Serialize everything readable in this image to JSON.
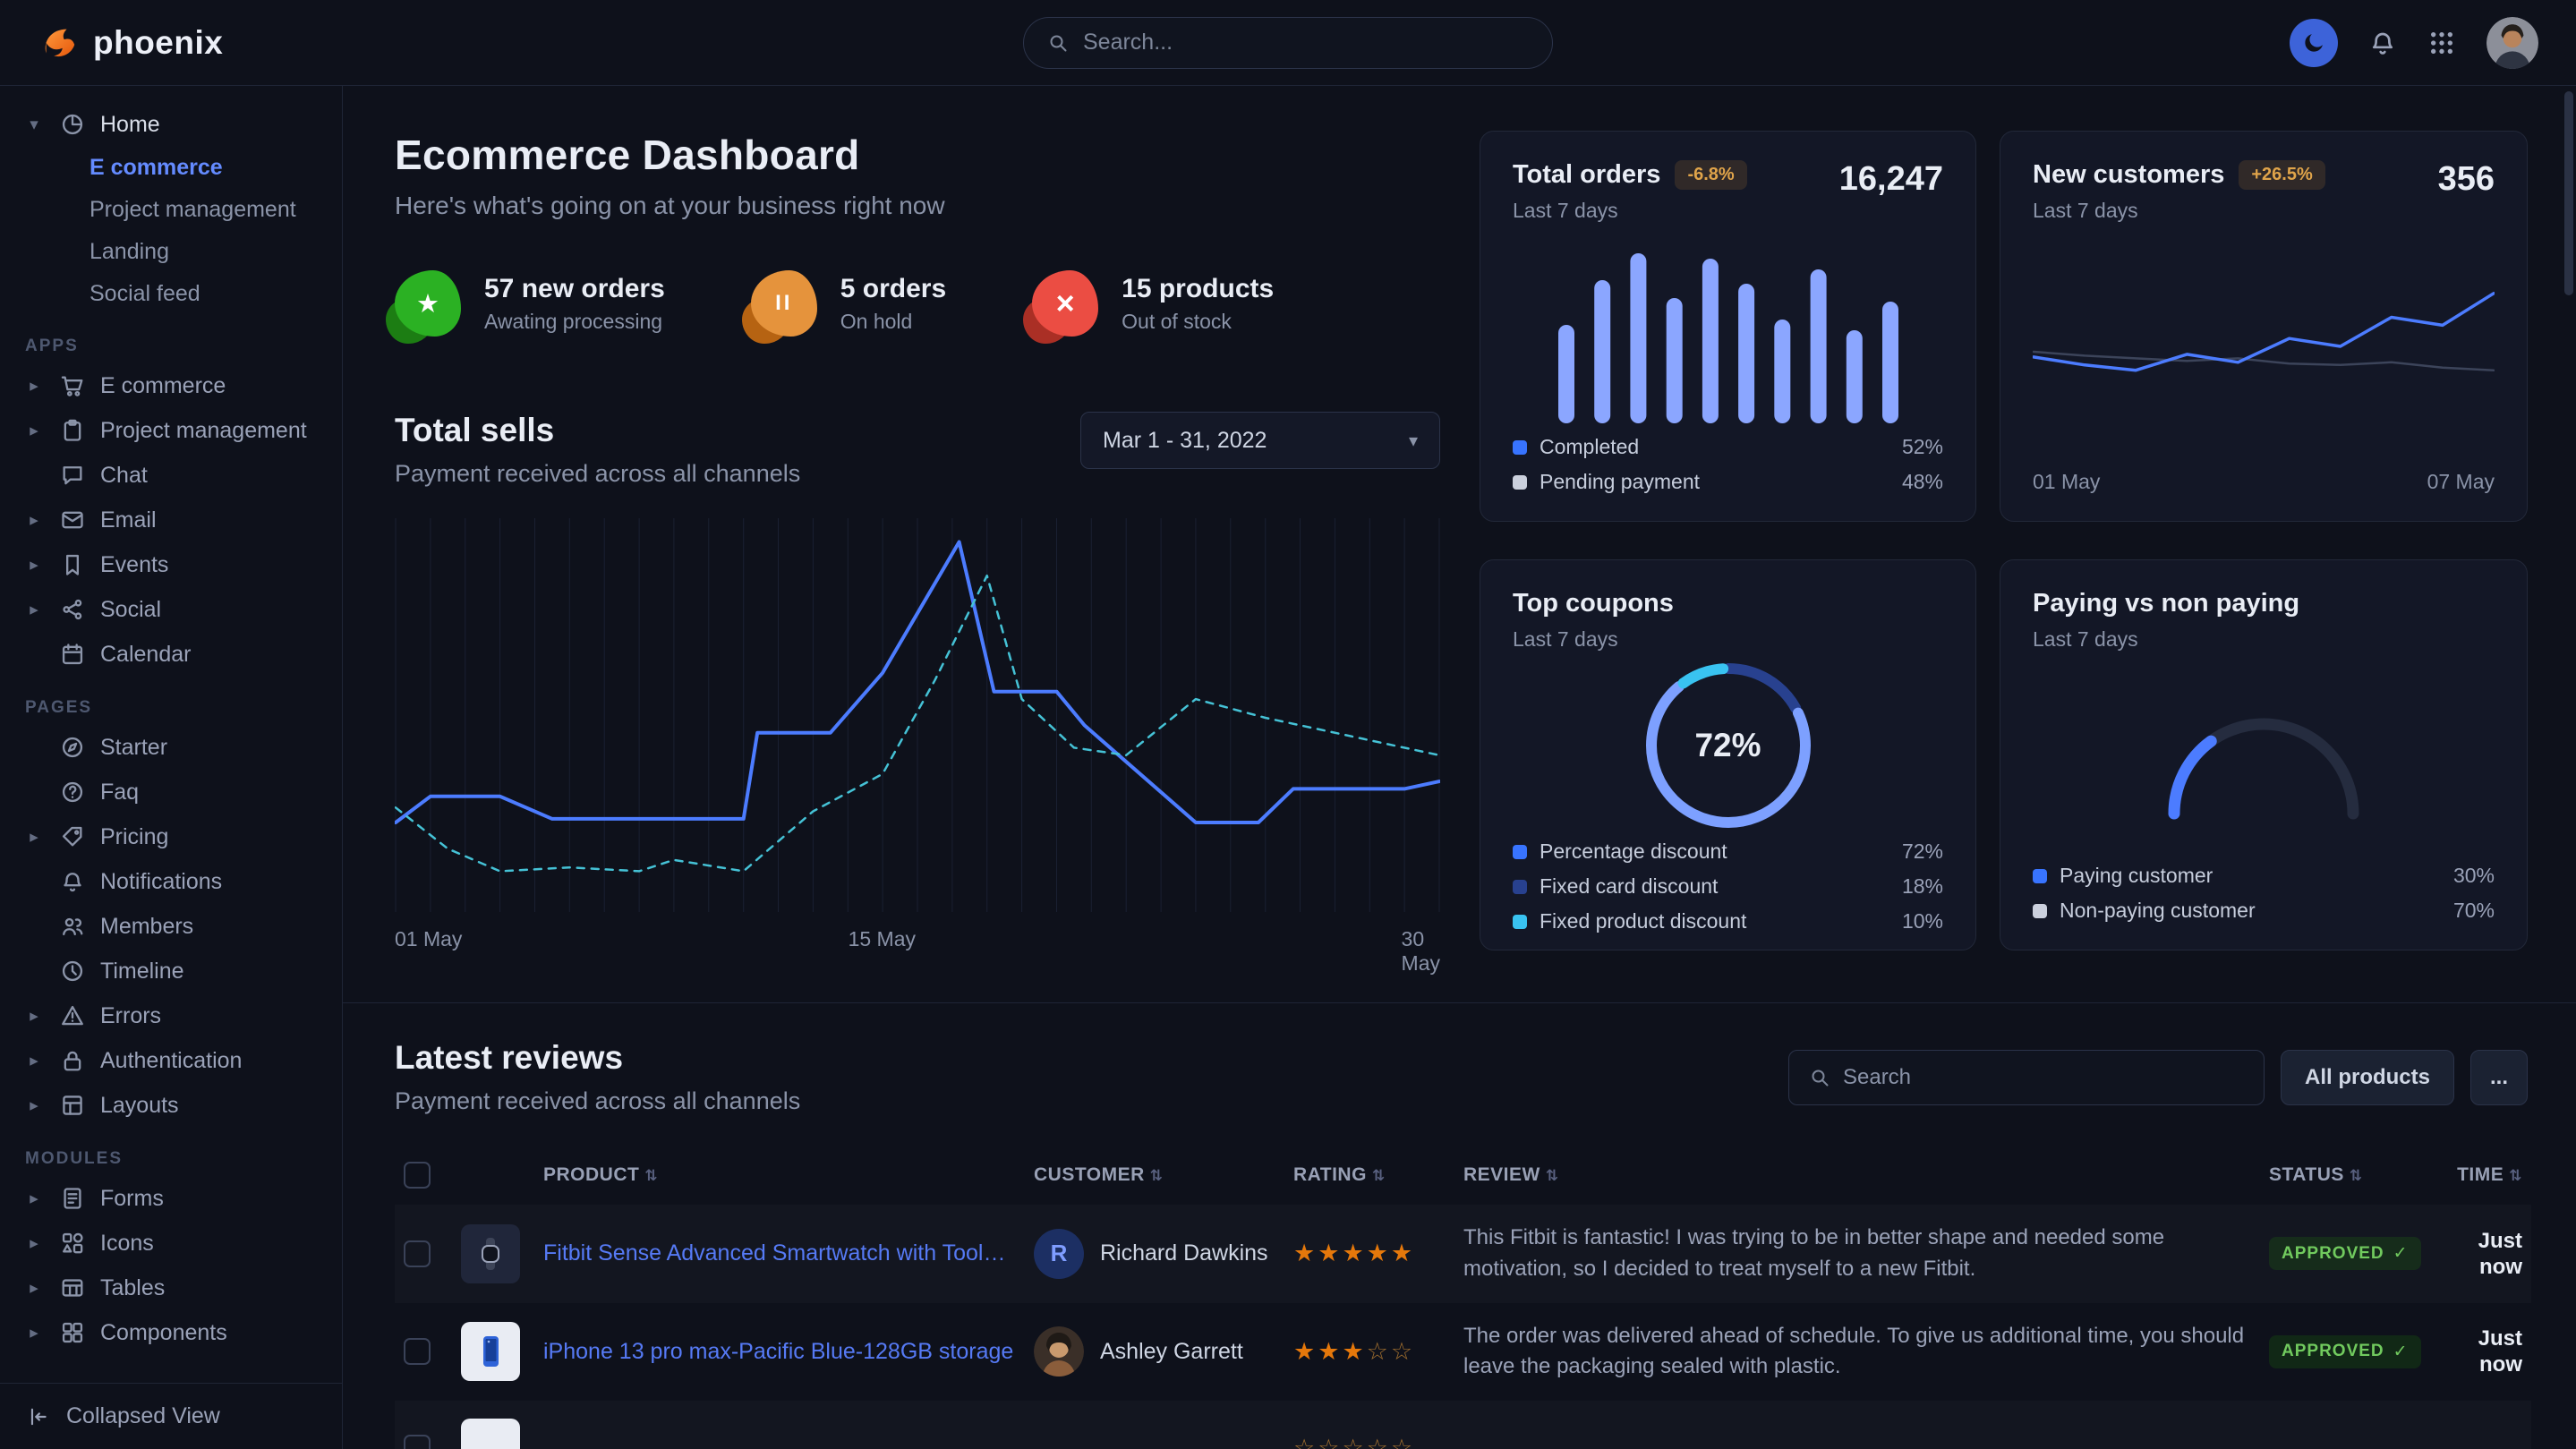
{
  "navbar": {
    "brand": "phoenix",
    "search_placeholder": "Search..."
  },
  "icons": {
    "chevron_right": "▸",
    "chevron_down": "▾",
    "sort": "⇅",
    "check": "✓",
    "ellipsis": "..."
  },
  "sidebar": {
    "home": {
      "label": "Home",
      "children": [
        "E commerce",
        "Project management",
        "Landing",
        "Social feed"
      ]
    },
    "sections": [
      {
        "label": "APPS",
        "items": [
          "E commerce",
          "Project management",
          "Chat",
          "Email",
          "Events",
          "Social",
          "Calendar"
        ]
      },
      {
        "label": "PAGES",
        "items": [
          "Starter",
          "Faq",
          "Pricing",
          "Notifications",
          "Members",
          "Timeline",
          "Errors",
          "Authentication",
          "Layouts"
        ]
      },
      {
        "label": "MODULES",
        "items": [
          "Forms",
          "Icons",
          "Tables",
          "Components"
        ]
      }
    ],
    "collapsed_view": "Collapsed View"
  },
  "page": {
    "title": "Ecommerce Dashboard",
    "subtitle": "Here's what's going on at your business right now"
  },
  "stats": [
    {
      "title": "57 new orders",
      "subtitle": "Awating processing",
      "icon": "★",
      "color": "#2bb123",
      "shade": "#1d8413"
    },
    {
      "title": "5 orders",
      "subtitle": "On hold",
      "icon": "II",
      "color": "#e5933c",
      "shade": "#c06812"
    },
    {
      "title": "15 products",
      "subtitle": "Out of stock",
      "icon": "×",
      "color": "#eb4d43",
      "shade": "#b33126"
    }
  ],
  "total_sells": {
    "title": "Total sells",
    "subtitle": "Payment received across all channels",
    "date_range": "Mar 1 - 31, 2022",
    "x_labels": [
      "01 May",
      "15 May",
      "30 May"
    ]
  },
  "cards": {
    "total_orders": {
      "title": "Total orders",
      "badge": "-6.8%",
      "period": "Last 7 days",
      "value": "16,247",
      "legend": [
        {
          "label": "Completed",
          "value": "52%",
          "color": "#3874ff"
        },
        {
          "label": "Pending payment",
          "value": "48%",
          "color": "#cbd0dd"
        }
      ]
    },
    "new_customers": {
      "title": "New customers",
      "badge": "+26.5%",
      "period": "Last 7 days",
      "value": "356",
      "x_labels": [
        "01 May",
        "07 May"
      ]
    },
    "top_coupons": {
      "title": "Top coupons",
      "period": "Last 7 days",
      "center_value": "72%",
      "legend": [
        {
          "label": "Percentage discount",
          "value": "72%",
          "color": "#3874ff"
        },
        {
          "label": "Fixed card discount",
          "value": "18%",
          "color": "#28418f"
        },
        {
          "label": "Fixed product discount",
          "value": "10%",
          "color": "#39c3f1"
        }
      ]
    },
    "paying": {
      "title": "Paying vs non paying",
      "period": "Last 7 days",
      "legend": [
        {
          "label": "Paying customer",
          "value": "30%",
          "color": "#3874ff"
        },
        {
          "label": "Non-paying customer",
          "value": "70%",
          "color": "#cbd0dd"
        }
      ]
    }
  },
  "reviews": {
    "title": "Latest reviews",
    "subtitle": "Payment received across all channels",
    "search_placeholder": "Search",
    "all_products_label": "All products",
    "columns": [
      "PRODUCT",
      "CUSTOMER",
      "RATING",
      "REVIEW",
      "STATUS",
      "TIME"
    ],
    "rows": [
      {
        "product": "Fitbit Sense Advanced Smartwatch with Tools fo...",
        "customer": "Richard Dawkins",
        "avatar_initial": "R",
        "rating": 5,
        "review": "This Fitbit is fantastic! I was trying to be in better shape and needed some motivation, so I decided to treat myself to a new Fitbit.",
        "status": "APPROVED",
        "time": "Just now"
      },
      {
        "product": "iPhone 13 pro max-Pacific Blue-128GB storage",
        "customer": "Ashley Garrett",
        "rating": 3,
        "review": "The order was delivered ahead of schedule. To give us additional time, you should leave the packaging sealed with plastic.",
        "status": "APPROVED",
        "time": "Just now"
      },
      {
        "product": "",
        "customer": "",
        "rating": 0,
        "review": "",
        "status": "",
        "time": ""
      }
    ]
  },
  "chart_data": [
    {
      "id": "total-sells",
      "type": "line",
      "title": "Total sells",
      "subtitle": "Payment received across all channels",
      "x_tick_labels": [
        "01 May",
        "15 May",
        "30 May"
      ],
      "x_range": [
        1,
        31
      ],
      "ylim": [
        0,
        100
      ],
      "grid_lines": 30,
      "legend_position": "none",
      "series": [
        {
          "name": "Current period",
          "style": "solid",
          "color": "#4c7cff",
          "width": 4,
          "x": [
            1,
            2,
            4,
            5.5,
            7,
            11,
            11.4,
            13.5,
            15,
            17.2,
            18.2,
            20,
            20.8,
            24,
            25.8,
            26.8,
            30,
            31
          ],
          "values": [
            22,
            29,
            29,
            23,
            23,
            23,
            46,
            46,
            62,
            97,
            57,
            57,
            48,
            22,
            22,
            31,
            31,
            33
          ]
        },
        {
          "name": "Previous period",
          "style": "dashed",
          "color": "#45c2d6",
          "width": 2.5,
          "x": [
            1,
            2.5,
            4,
            6,
            8,
            9,
            11,
            13,
            15,
            16.5,
            18,
            19,
            20.5,
            22,
            24,
            26,
            29,
            31
          ],
          "values": [
            26,
            15,
            9,
            10,
            9,
            12,
            9,
            25,
            35,
            60,
            88,
            55,
            42,
            40,
            55,
            50,
            44,
            40
          ]
        }
      ]
    },
    {
      "id": "total-orders-bars",
      "type": "bar",
      "title": "Total orders",
      "value_label": "16,247",
      "ylim": [
        0,
        100
      ],
      "color": "#8ba6ff",
      "values": [
        55,
        80,
        95,
        70,
        92,
        78,
        58,
        86,
        52,
        68
      ],
      "legend": [
        {
          "label": "Completed",
          "value": 52
        },
        {
          "label": "Pending payment",
          "value": 48
        }
      ]
    },
    {
      "id": "new-customers-line",
      "type": "line",
      "title": "New customers",
      "value_label": "356",
      "x_tick_labels": [
        "01 May",
        "07 May"
      ],
      "ylim": [
        0,
        100
      ],
      "series": [
        {
          "name": "Secondary",
          "style": "solid",
          "color": "#3c445a",
          "width": 2.5,
          "values": [
            48,
            45,
            43,
            41,
            43,
            39,
            38,
            40,
            36,
            34
          ]
        },
        {
          "name": "New customers",
          "style": "solid",
          "color": "#4c7cff",
          "width": 3.5,
          "values": [
            44,
            38,
            34,
            46,
            40,
            58,
            52,
            74,
            68,
            92
          ]
        }
      ]
    },
    {
      "id": "top-coupons-donut",
      "type": "pie",
      "title": "Top coupons",
      "center_label": "72%",
      "segments": [
        {
          "label": "Fixed card discount",
          "value": 18,
          "color": "#28418f"
        },
        {
          "label": "Percentage discount",
          "value": 72,
          "color": "#7da0ff"
        },
        {
          "label": "Fixed product discount",
          "value": 10,
          "color": "#39c3f1"
        }
      ]
    },
    {
      "id": "paying-gauge",
      "type": "gauge",
      "title": "Paying vs non paying",
      "value": 30,
      "color": "#4c7cff",
      "track": "#252c3f",
      "segments": [
        {
          "label": "Paying customer",
          "value": 30
        },
        {
          "label": "Non-paying customer",
          "value": 70
        }
      ]
    }
  ]
}
